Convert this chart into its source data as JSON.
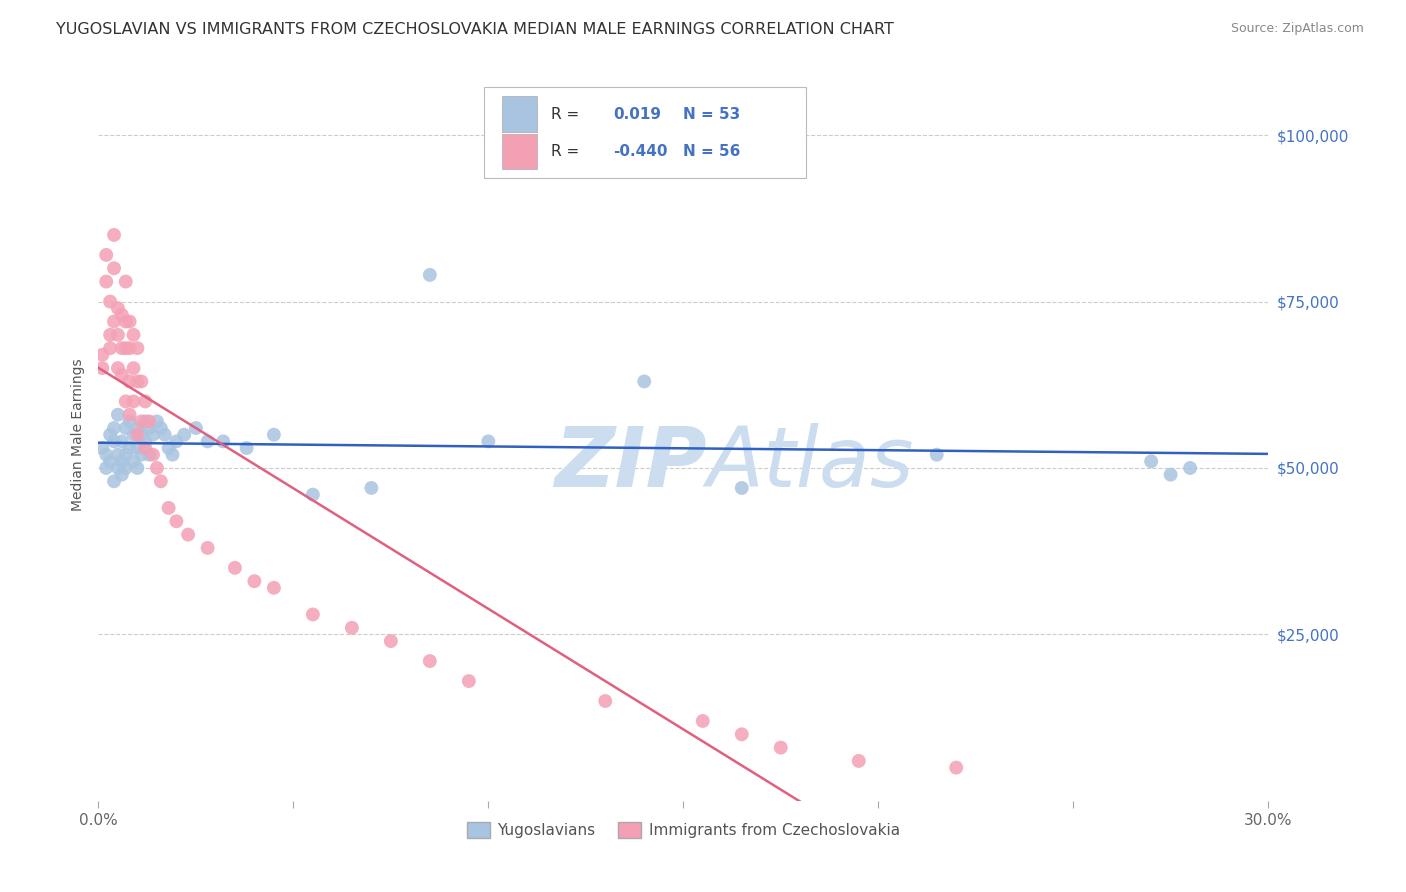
{
  "title": "YUGOSLAVIAN VS IMMIGRANTS FROM CZECHOSLOVAKIA MEDIAN MALE EARNINGS CORRELATION CHART",
  "source": "Source: ZipAtlas.com",
  "ylabel": "Median Male Earnings",
  "xlim": [
    0.0,
    0.3
  ],
  "ylim": [
    0,
    110000
  ],
  "yticks": [
    0,
    25000,
    50000,
    75000,
    100000
  ],
  "xticks": [
    0.0,
    0.05,
    0.1,
    0.15,
    0.2,
    0.25,
    0.3
  ],
  "series1_label": "Yugoslavians",
  "series2_label": "Immigrants from Czechoslovakia",
  "series1_color": "#a8c4e0",
  "series2_color": "#f4a0b4",
  "series1_R": 0.019,
  "series1_N": 53,
  "series2_R": -0.44,
  "series2_N": 56,
  "trend1_color": "#3060c0",
  "trend2_color": "#e06080",
  "watermark_color": "#ccddf0",
  "background_color": "#ffffff",
  "legend_text_color": "#4472c4",
  "series1_x": [
    0.001,
    0.002,
    0.002,
    0.003,
    0.003,
    0.004,
    0.004,
    0.004,
    0.005,
    0.005,
    0.005,
    0.006,
    0.006,
    0.006,
    0.007,
    0.007,
    0.007,
    0.008,
    0.008,
    0.009,
    0.009,
    0.01,
    0.01,
    0.01,
    0.011,
    0.011,
    0.012,
    0.012,
    0.013,
    0.013,
    0.014,
    0.015,
    0.016,
    0.017,
    0.018,
    0.019,
    0.02,
    0.022,
    0.025,
    0.028,
    0.032,
    0.038,
    0.045,
    0.055,
    0.07,
    0.085,
    0.1,
    0.14,
    0.165,
    0.215,
    0.27,
    0.275,
    0.28
  ],
  "series1_y": [
    53000,
    52000,
    50000,
    55000,
    51000,
    54000,
    48000,
    56000,
    52000,
    50000,
    58000,
    54000,
    51000,
    49000,
    56000,
    52000,
    50000,
    57000,
    53000,
    55000,
    51000,
    56000,
    53000,
    50000,
    55000,
    52000,
    57000,
    54000,
    56000,
    52000,
    55000,
    57000,
    56000,
    55000,
    53000,
    52000,
    54000,
    55000,
    56000,
    54000,
    54000,
    53000,
    55000,
    46000,
    47000,
    79000,
    54000,
    63000,
    47000,
    52000,
    51000,
    49000,
    50000
  ],
  "series2_x": [
    0.001,
    0.001,
    0.002,
    0.002,
    0.003,
    0.003,
    0.003,
    0.004,
    0.004,
    0.004,
    0.005,
    0.005,
    0.005,
    0.006,
    0.006,
    0.006,
    0.007,
    0.007,
    0.007,
    0.007,
    0.008,
    0.008,
    0.008,
    0.008,
    0.009,
    0.009,
    0.009,
    0.01,
    0.01,
    0.01,
    0.011,
    0.011,
    0.012,
    0.012,
    0.013,
    0.014,
    0.015,
    0.016,
    0.018,
    0.02,
    0.023,
    0.028,
    0.035,
    0.04,
    0.045,
    0.055,
    0.065,
    0.075,
    0.085,
    0.095,
    0.13,
    0.155,
    0.165,
    0.175,
    0.195,
    0.22
  ],
  "series2_y": [
    67000,
    65000,
    82000,
    78000,
    75000,
    70000,
    68000,
    85000,
    80000,
    72000,
    74000,
    70000,
    65000,
    73000,
    68000,
    64000,
    78000,
    72000,
    68000,
    60000,
    72000,
    68000,
    63000,
    58000,
    70000,
    65000,
    60000,
    68000,
    63000,
    55000,
    63000,
    57000,
    60000,
    53000,
    57000,
    52000,
    50000,
    48000,
    44000,
    42000,
    40000,
    38000,
    35000,
    33000,
    32000,
    28000,
    26000,
    24000,
    21000,
    18000,
    15000,
    12000,
    10000,
    8000,
    6000,
    5000
  ]
}
